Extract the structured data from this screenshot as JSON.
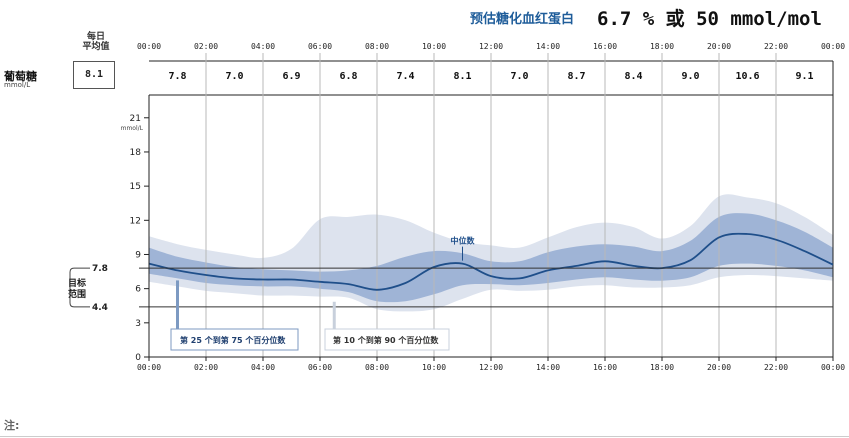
{
  "header": {
    "label": "预估糖化血红蛋白",
    "value": "6.7 % 或 50 mmol/mol"
  },
  "daily_avg": {
    "heading_line1": "每日",
    "heading_line2": "平均值",
    "value": "8.1"
  },
  "glucose": {
    "label": "葡萄糖",
    "unit": "mmol/L"
  },
  "target": {
    "label_line1": "目标",
    "label_line2": "范围",
    "upper": "7.8",
    "lower": "4.4"
  },
  "legend": {
    "inner": "第 25 个到第 75 个百分位数",
    "outer": "第 10 个到第 90 个百分位数",
    "median": "中位数"
  },
  "note_label": "注:",
  "colors": {
    "header_label": "#1f5d9a",
    "median_line": "#1f4f8a",
    "band_inner": "#9fb4d6",
    "band_outer": "#dde3ee",
    "target_line": "#333333",
    "grid": "#b8b8b8"
  },
  "chart_data": {
    "type": "area",
    "title": "",
    "ylabel": "mmol/L",
    "xlabel": "",
    "x_ticks": [
      "00:00",
      "02:00",
      "04:00",
      "06:00",
      "08:00",
      "10:00",
      "12:00",
      "14:00",
      "16:00",
      "18:00",
      "20:00",
      "22:00",
      "00:00"
    ],
    "y_ticks": [
      0,
      3,
      6,
      9,
      12,
      15,
      18,
      21
    ],
    "ylim": [
      0,
      23
    ],
    "xlim_hours": [
      0,
      24
    ],
    "grid": true,
    "target_range": [
      4.4,
      7.8
    ],
    "hourly_avg_labels": [
      "7.8",
      "7.0",
      "6.9",
      "6.8",
      "7.4",
      "8.1",
      "7.0",
      "8.7",
      "8.4",
      "9.0",
      "10.6",
      "9.1"
    ],
    "x_hours": [
      0,
      1,
      2,
      3,
      4,
      5,
      6,
      7,
      8,
      9,
      10,
      11,
      12,
      13,
      14,
      15,
      16,
      17,
      18,
      19,
      20,
      21,
      22,
      23,
      24
    ],
    "series": [
      {
        "name": "中位数",
        "values": [
          8.2,
          7.6,
          7.2,
          6.9,
          6.8,
          6.8,
          6.6,
          6.4,
          5.9,
          6.5,
          7.9,
          8.2,
          7.1,
          6.9,
          7.6,
          8.0,
          8.4,
          8.0,
          7.8,
          8.5,
          10.5,
          10.8,
          10.3,
          9.3,
          8.1
        ]
      },
      {
        "name": "p25",
        "values": [
          7.3,
          6.9,
          6.5,
          6.3,
          6.2,
          6.2,
          6.0,
          5.7,
          4.9,
          4.9,
          5.5,
          6.3,
          6.4,
          6.3,
          6.5,
          6.8,
          7.0,
          6.8,
          6.7,
          7.0,
          8.0,
          8.2,
          8.0,
          7.6,
          7.0
        ]
      },
      {
        "name": "p75",
        "values": [
          9.6,
          8.8,
          8.3,
          7.9,
          7.7,
          7.6,
          7.5,
          7.6,
          8.0,
          8.8,
          9.3,
          9.1,
          8.4,
          8.4,
          9.2,
          9.7,
          9.9,
          9.7,
          9.3,
          10.2,
          12.3,
          12.6,
          12.0,
          11.0,
          9.6
        ]
      },
      {
        "name": "p10",
        "values": [
          6.6,
          6.2,
          5.8,
          5.6,
          5.4,
          5.4,
          5.3,
          5.2,
          4.2,
          4.0,
          4.2,
          5.1,
          5.9,
          5.8,
          5.9,
          6.2,
          6.3,
          6.1,
          6.1,
          6.3,
          7.0,
          7.2,
          7.1,
          6.9,
          6.7
        ]
      },
      {
        "name": "p90",
        "values": [
          10.6,
          9.9,
          9.4,
          9.0,
          8.7,
          9.5,
          12.1,
          12.3,
          12.5,
          12.0,
          10.9,
          10.1,
          9.8,
          9.6,
          10.5,
          11.4,
          11.8,
          11.4,
          10.4,
          11.5,
          14.1,
          14.0,
          13.5,
          12.3,
          10.7
        ]
      }
    ]
  }
}
